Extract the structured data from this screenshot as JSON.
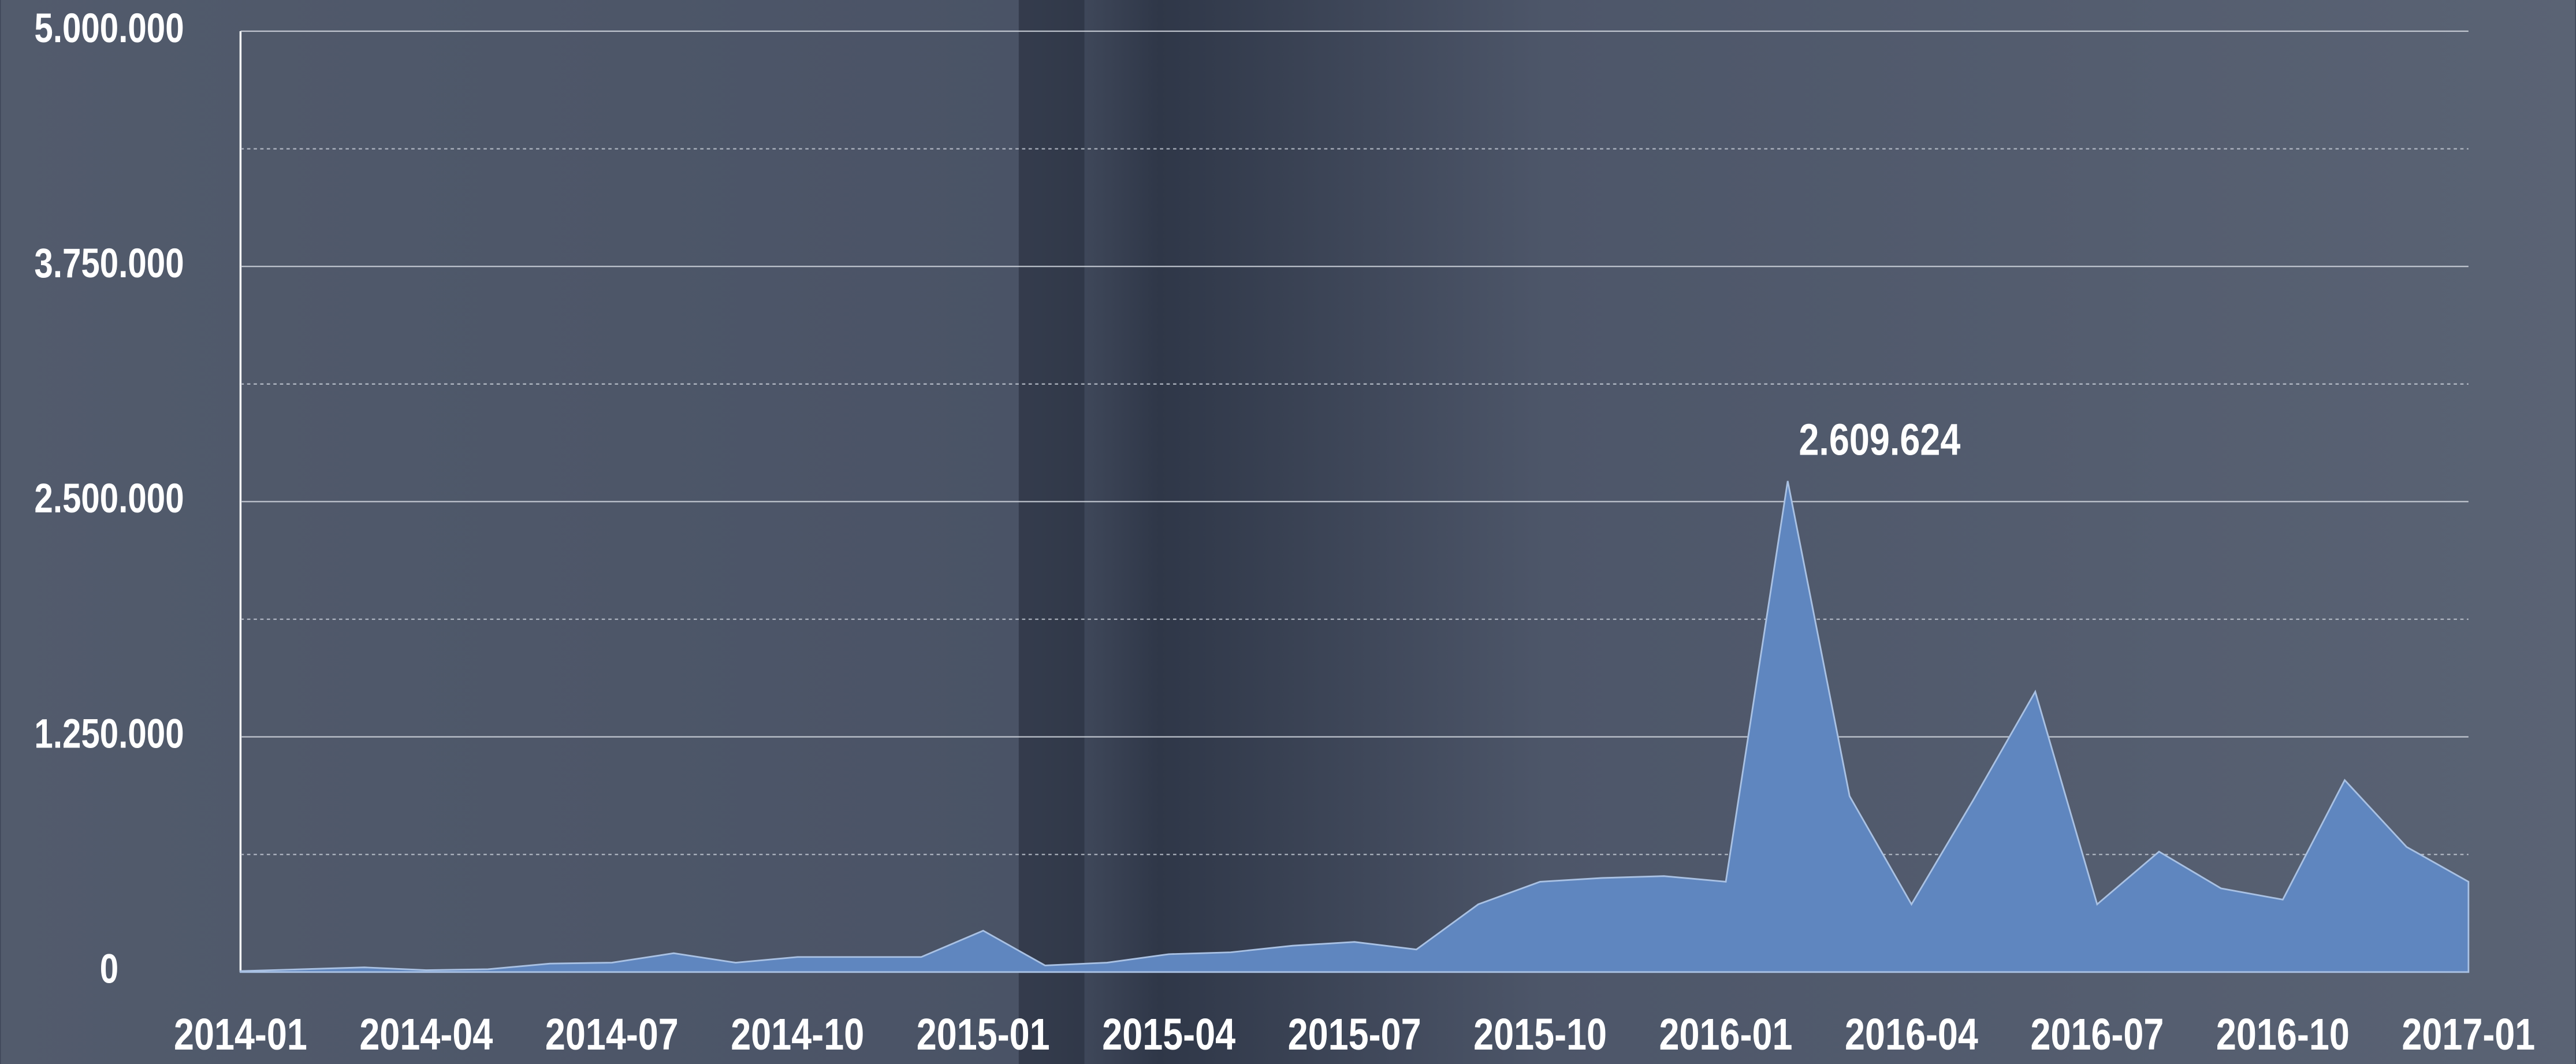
{
  "chart_data": {
    "type": "area",
    "categories": [
      "2014-01",
      null,
      null,
      "2014-04",
      null,
      null,
      "2014-07",
      null,
      null,
      "2014-10",
      null,
      null,
      "2015-01",
      null,
      null,
      "2015-04",
      null,
      null,
      "2015-07",
      null,
      null,
      "2015-10",
      null,
      null,
      "2016-01",
      null,
      null,
      "2016-04",
      null,
      null,
      "2016-07",
      null,
      null,
      "2016-10",
      null,
      null,
      "2017-01"
    ],
    "values": [
      5000,
      15000,
      25000,
      10000,
      15000,
      45000,
      50000,
      100000,
      50000,
      80000,
      80000,
      80000,
      220000,
      35000,
      50000,
      95000,
      105000,
      140000,
      160000,
      120000,
      360000,
      480000,
      500000,
      510000,
      480000,
      2609624,
      935000,
      360000,
      915000,
      1490000,
      360000,
      640000,
      445000,
      385000,
      1020000,
      665000,
      480000
    ],
    "value_labels": [
      null,
      null,
      null,
      null,
      null,
      null,
      null,
      null,
      null,
      null,
      null,
      null,
      null,
      null,
      null,
      null,
      null,
      null,
      null,
      null,
      null,
      null,
      null,
      null,
      null,
      "2.609.624",
      null,
      null,
      null,
      null,
      null,
      null,
      null,
      null,
      null,
      null,
      null
    ],
    "color": "#5f86bf",
    "ylim": [
      0,
      5000000
    ],
    "yticks": [
      {
        "value": 0,
        "label": "0"
      },
      {
        "value": 1250000,
        "label": "1.250.000"
      },
      {
        "value": 2500000,
        "label": "2.500.000"
      },
      {
        "value": 3750000,
        "label": "3.750.000"
      },
      {
        "value": 5000000,
        "label": "5.000.000"
      }
    ],
    "minor_yticks": [
      625000,
      1875000,
      3125000,
      4375000
    ],
    "grid": true
  }
}
